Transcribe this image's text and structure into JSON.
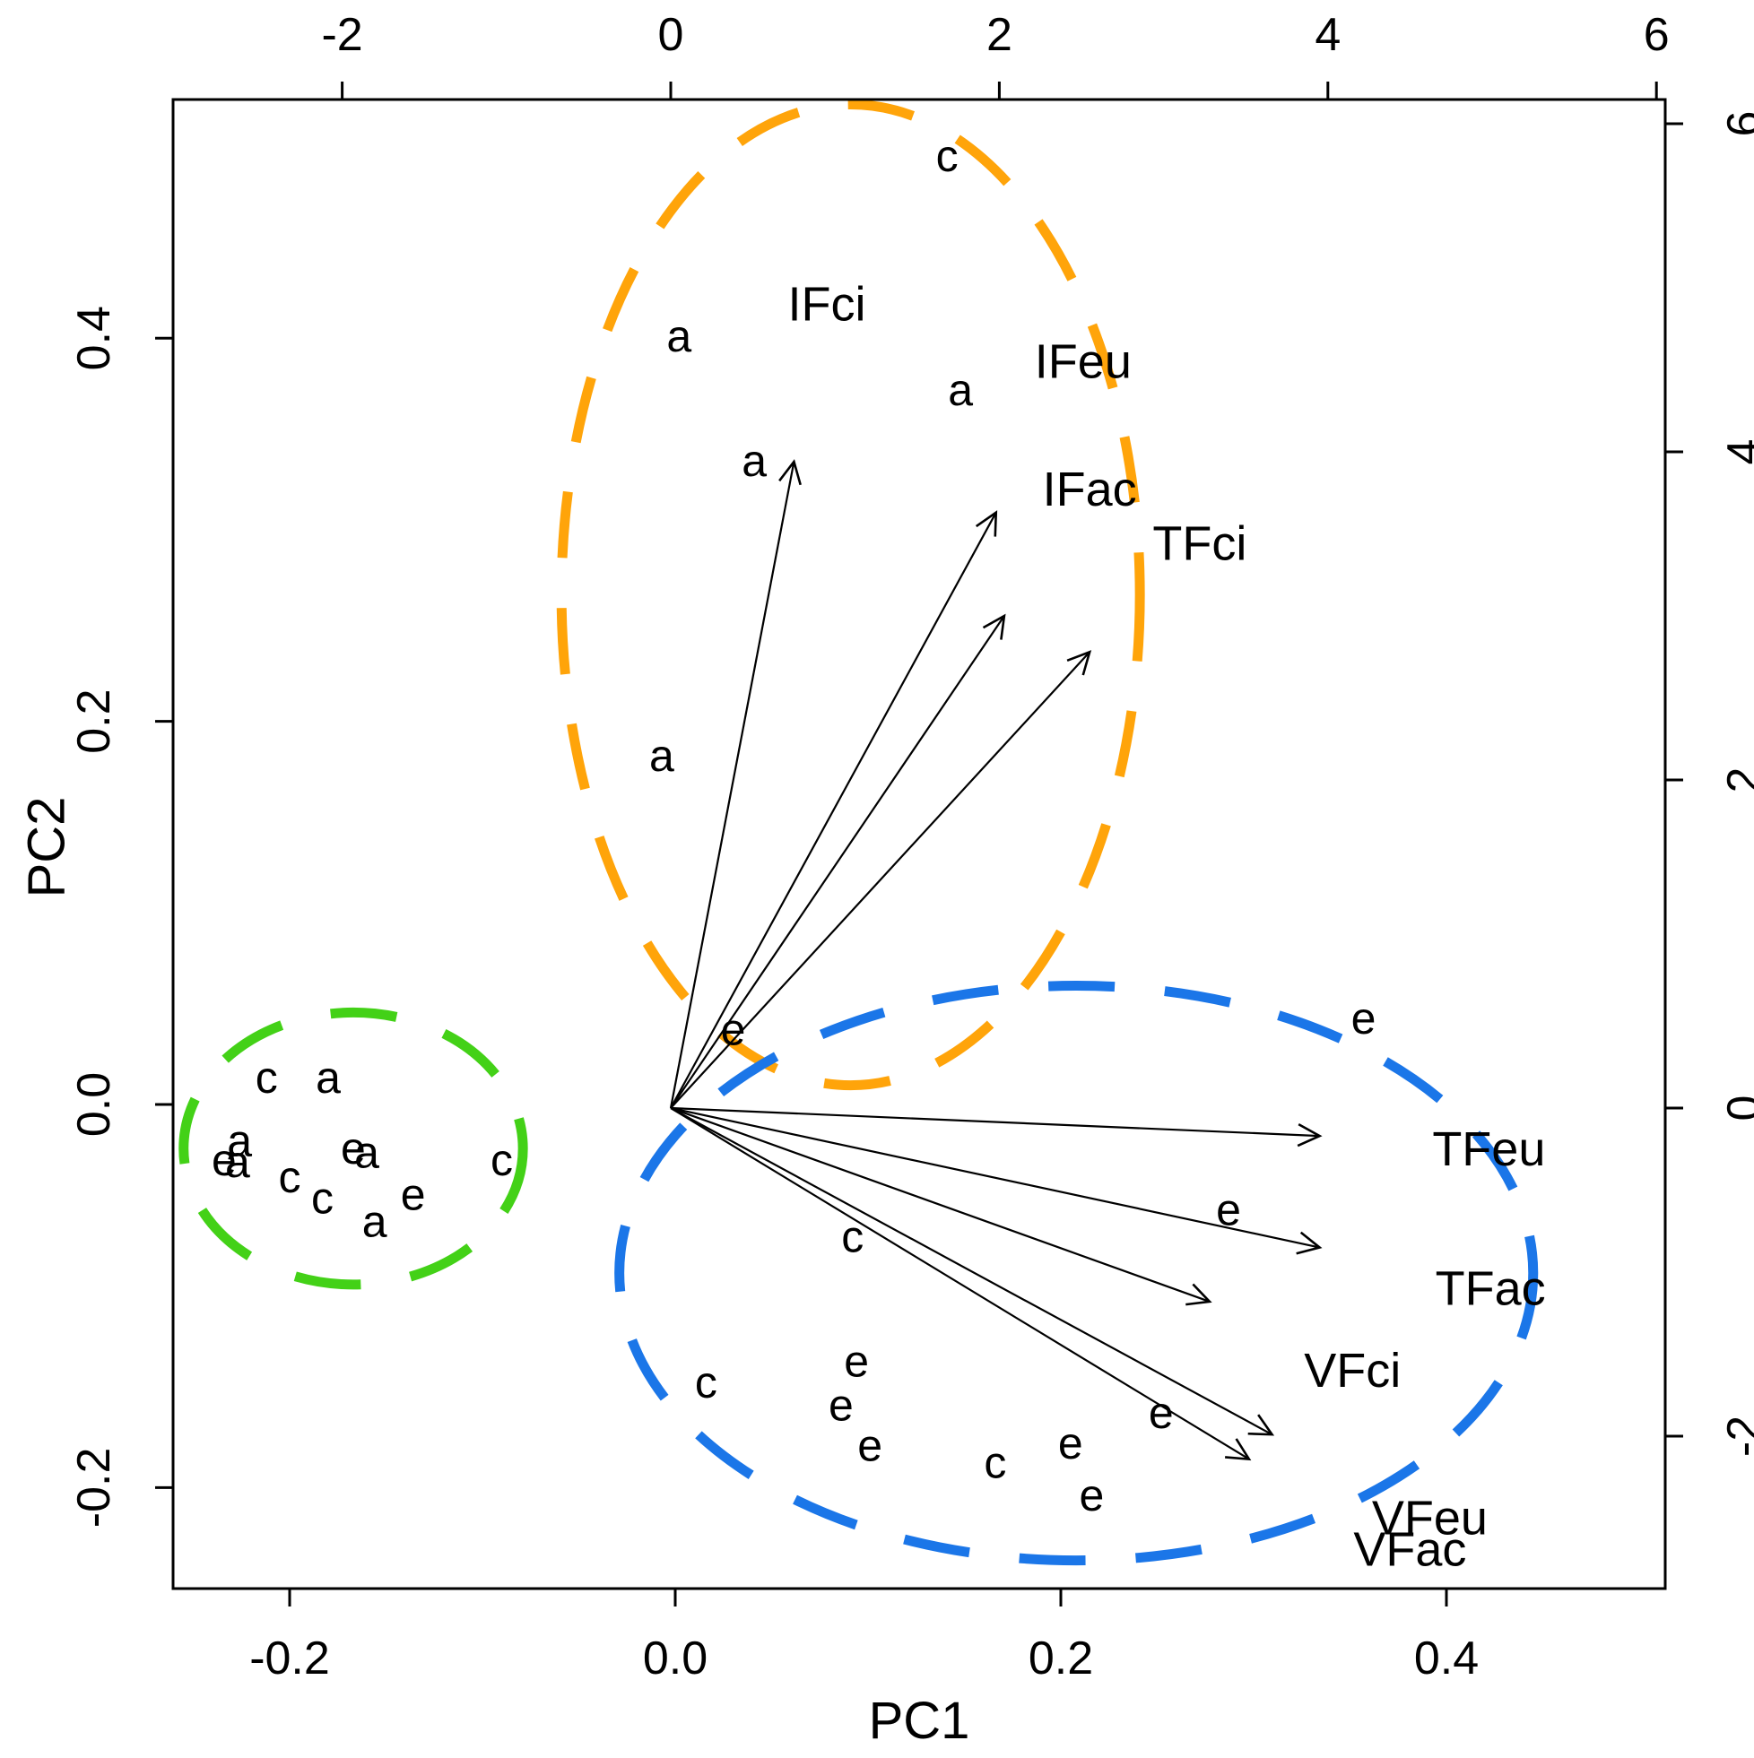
{
  "chart_data": {
    "type": "scatter",
    "subtype": "pca-biplot",
    "grid": false,
    "legend": false,
    "point_color": "#000000",
    "arrow_color": "#000000",
    "axes": {
      "bottom": {
        "label": "PC1",
        "ticks": [
          {
            "value": -0.2,
            "text": "-0.2"
          },
          {
            "value": 0.0,
            "text": "0.0"
          },
          {
            "value": 0.2,
            "text": "0.2"
          },
          {
            "value": 0.4,
            "text": "0.4"
          }
        ],
        "range": [
          -0.26,
          0.51
        ]
      },
      "left": {
        "label": "PC2",
        "ticks": [
          {
            "value": 0.4,
            "text": "0.4"
          },
          {
            "value": 0.2,
            "text": "0.2"
          },
          {
            "value": 0.0,
            "text": "0.0"
          },
          {
            "value": -0.2,
            "text": "-0.2"
          }
        ],
        "range": [
          -0.25,
          0.52
        ]
      },
      "top": {
        "label": "",
        "ticks": [
          {
            "value": -2,
            "text": "-2"
          },
          {
            "value": 0,
            "text": "0"
          },
          {
            "value": 2,
            "text": "2"
          },
          {
            "value": 4,
            "text": "4"
          },
          {
            "value": 6,
            "text": "6"
          }
        ],
        "range": [
          -3.0,
          6.1
        ]
      },
      "right": {
        "label": "",
        "ticks": [
          {
            "value": 6,
            "text": "6"
          },
          {
            "value": 4,
            "text": "4"
          },
          {
            "value": 2,
            "text": "2"
          },
          {
            "value": 0,
            "text": "0"
          },
          {
            "value": -2,
            "text": "-2"
          }
        ],
        "range": [
          -2.9,
          6.2
        ]
      }
    },
    "groups": [
      {
        "id": "treatment-a-c",
        "color": "#43D117",
        "ellipse": {
          "cx": -0.167,
          "cy": -0.023,
          "rx": 0.088,
          "ry": 0.071
        }
      },
      {
        "id": "infructescence",
        "color": "#FFA40A",
        "ellipse": {
          "cx": 0.091,
          "cy": 0.266,
          "rx": 0.15,
          "ry": 0.256
        }
      },
      {
        "id": "twig-vigorous",
        "color": "#1B76E8",
        "ellipse": {
          "cx": 0.208,
          "cy": -0.088,
          "rx": 0.237,
          "ry": 0.15
        }
      }
    ],
    "points": [
      {
        "label": "c",
        "group": 0,
        "pc1": -0.212,
        "pc2": 0.014
      },
      {
        "label": "a",
        "group": 0,
        "pc1": -0.18,
        "pc2": 0.014
      },
      {
        "label": "a",
        "group": 0,
        "pc1": -0.226,
        "pc2": -0.019
      },
      {
        "label": "e",
        "group": 0,
        "pc1": -0.234,
        "pc2": -0.029
      },
      {
        "label": "a",
        "group": 0,
        "pc1": -0.227,
        "pc2": -0.03
      },
      {
        "label": "e",
        "group": 0,
        "pc1": -0.167,
        "pc2": -0.023
      },
      {
        "label": "a",
        "group": 0,
        "pc1": -0.16,
        "pc2": -0.025
      },
      {
        "label": "c",
        "group": 0,
        "pc1": -0.2,
        "pc2": -0.038
      },
      {
        "label": "c",
        "group": 0,
        "pc1": -0.183,
        "pc2": -0.049
      },
      {
        "label": "e",
        "group": 0,
        "pc1": -0.136,
        "pc2": -0.047
      },
      {
        "label": "a",
        "group": 0,
        "pc1": -0.156,
        "pc2": -0.061
      },
      {
        "label": "c",
        "group": 0,
        "pc1": -0.09,
        "pc2": -0.029
      },
      {
        "label": "c",
        "group": 1,
        "pc1": 0.141,
        "pc2": 0.495
      },
      {
        "label": "a",
        "group": 1,
        "pc1": 0.002,
        "pc2": 0.401
      },
      {
        "label": "a",
        "group": 1,
        "pc1": 0.148,
        "pc2": 0.373
      },
      {
        "label": "a",
        "group": 1,
        "pc1": 0.041,
        "pc2": 0.336
      },
      {
        "label": "a",
        "group": 1,
        "pc1": -0.007,
        "pc2": 0.182
      },
      {
        "label": "e",
        "group": 1,
        "pc1": 0.03,
        "pc2": 0.039
      },
      {
        "label": "e",
        "group": 2,
        "pc1": 0.357,
        "pc2": 0.045
      },
      {
        "label": "e",
        "group": 2,
        "pc1": 0.287,
        "pc2": -0.055
      },
      {
        "label": "c",
        "group": 2,
        "pc1": 0.092,
        "pc2": -0.069
      },
      {
        "label": "c",
        "group": 2,
        "pc1": 0.016,
        "pc2": -0.145
      },
      {
        "label": "e",
        "group": 2,
        "pc1": 0.094,
        "pc2": -0.134
      },
      {
        "label": "e",
        "group": 2,
        "pc1": 0.086,
        "pc2": -0.157
      },
      {
        "label": "e",
        "group": 2,
        "pc1": 0.101,
        "pc2": -0.178
      },
      {
        "label": "c",
        "group": 2,
        "pc1": 0.166,
        "pc2": -0.187
      },
      {
        "label": "e",
        "group": 2,
        "pc1": 0.205,
        "pc2": -0.177
      },
      {
        "label": "e",
        "group": 2,
        "pc1": 0.216,
        "pc2": -0.204
      },
      {
        "label": "e",
        "group": 2,
        "pc1": 0.252,
        "pc2": -0.161
      }
    ],
    "loadings": [
      {
        "name": "IFci",
        "x": 0.75,
        "y": 3.94,
        "label_x": 0.95,
        "label_y": 4.9
      },
      {
        "name": "IFeu",
        "x": 1.98,
        "y": 3.63,
        "label_x": 2.51,
        "label_y": 4.55
      },
      {
        "name": "IFac",
        "x": 2.03,
        "y": 3.0,
        "label_x": 2.55,
        "label_y": 3.77
      },
      {
        "name": "TFci",
        "x": 2.55,
        "y": 2.78,
        "label_x": 3.22,
        "label_y": 3.44
      },
      {
        "name": "TFeu",
        "x": 3.95,
        "y": -0.17,
        "label_x": 4.98,
        "label_y": -0.25
      },
      {
        "name": "TFac",
        "x": 3.95,
        "y": -0.85,
        "label_x": 4.99,
        "label_y": -1.1
      },
      {
        "name": "VFci",
        "x": 3.28,
        "y": -1.18,
        "label_x": 4.15,
        "label_y": -1.6
      },
      {
        "name": "VFeu",
        "x": 3.66,
        "y": -1.99,
        "label_x": 4.62,
        "label_y": -2.5
      },
      {
        "name": "VFac",
        "x": 3.52,
        "y": -2.14,
        "label_x": 4.5,
        "label_y": -2.69
      }
    ]
  }
}
